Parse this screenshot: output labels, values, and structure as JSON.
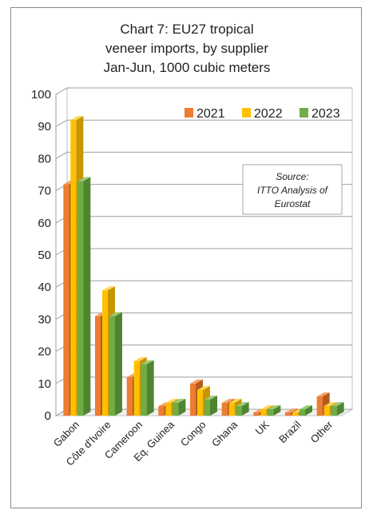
{
  "chart_data": {
    "type": "bar",
    "title": [
      "Chart 7: EU27 tropical",
      "veneer imports, by supplier",
      "Jan-Jun, 1000 cubic meters"
    ],
    "categories": [
      "Gabon",
      "Côte d'Ivoire",
      "Cameroon",
      "Eq. Guinea",
      "Congo",
      "Ghana",
      "UK",
      "Brazil",
      "Other"
    ],
    "series": [
      {
        "name": "2021",
        "values": [
          72,
          31,
          12,
          3,
          10,
          4,
          1,
          1,
          6
        ]
      },
      {
        "name": "2022",
        "values": [
          92,
          39,
          17,
          4,
          8,
          4,
          2,
          1,
          3
        ]
      },
      {
        "name": "2023",
        "values": [
          73,
          31,
          16,
          4,
          5,
          3,
          2,
          2,
          3
        ]
      }
    ],
    "yticks": [
      "0",
      "10",
      "20",
      "30",
      "40",
      "50",
      "60",
      "70",
      "80",
      "90",
      "100"
    ],
    "ylim": [
      0,
      100
    ],
    "grid": true,
    "legend_position": "top-right",
    "annotation": [
      "Source:",
      "ITTO Analysis of",
      "Eurostat"
    ],
    "colors": {
      "2021": {
        "front": "#ed7d31",
        "side": "#b85a1a",
        "top": "#f4a46e"
      },
      "2022": {
        "front": "#ffc000",
        "side": "#c89400",
        "top": "#ffd75a"
      },
      "2023": {
        "front": "#70ad47",
        "side": "#4f8530",
        "top": "#9ccc7c"
      }
    }
  }
}
